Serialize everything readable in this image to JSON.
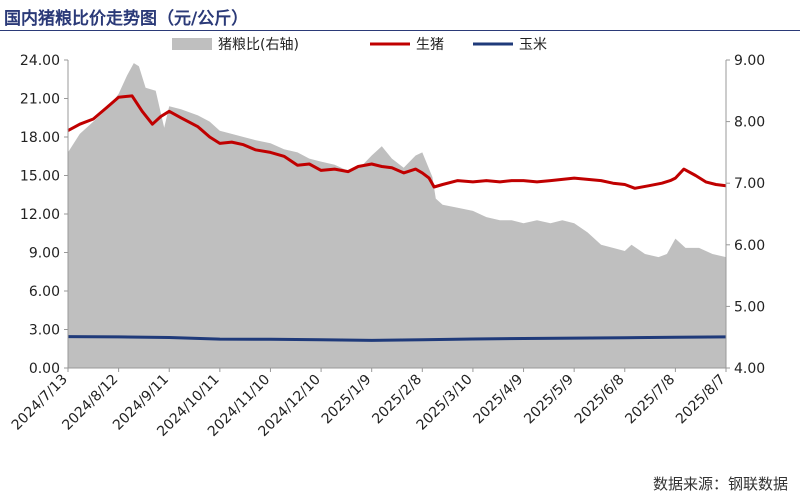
{
  "chart_data": {
    "type": "line",
    "title": "国内猪粮比价走势图（元/公斤）",
    "source": "数据来源：钢联数据",
    "left_axis": {
      "ylim": [
        0,
        24
      ],
      "ticks": [
        "0.00",
        "3.00",
        "6.00",
        "9.00",
        "12.00",
        "15.00",
        "18.00",
        "21.00",
        "24.00"
      ]
    },
    "right_axis": {
      "ylim": [
        4,
        9
      ],
      "ticks": [
        "4.00",
        "5.00",
        "6.00",
        "7.00",
        "8.00",
        "9.00"
      ]
    },
    "x_tick_labels": [
      "2024/7/13",
      "2024/8/12",
      "2024/9/11",
      "2024/10/11",
      "2024/11/10",
      "2024/12/10",
      "2025/1/9",
      "2025/2/8",
      "2025/3/10",
      "2025/4/9",
      "2025/5/9",
      "2025/6/8",
      "2025/7/8",
      "2025/8/7"
    ],
    "x_range": [
      "2024-07-13",
      "2025-08-07"
    ],
    "grid": false,
    "legend_position": "top",
    "series": [
      {
        "name": "猪粮比(右轴)",
        "type": "area",
        "axis": "right",
        "color": "#bfbfbf",
        "x": [
          "2024-07-13",
          "2024-07-20",
          "2024-07-28",
          "2024-08-05",
          "2024-08-12",
          "2024-08-17",
          "2024-08-21",
          "2024-08-24",
          "2024-08-28",
          "2024-09-03",
          "2024-09-08",
          "2024-09-11",
          "2024-09-18",
          "2024-09-28",
          "2024-10-05",
          "2024-10-11",
          "2024-10-18",
          "2024-10-25",
          "2024-11-01",
          "2024-11-10",
          "2024-11-18",
          "2024-11-26",
          "2024-12-03",
          "2024-12-10",
          "2024-12-18",
          "2024-12-26",
          "2025-01-02",
          "2025-01-09",
          "2025-01-15",
          "2025-01-21",
          "2025-01-28",
          "2025-02-04",
          "2025-02-08",
          "2025-02-14",
          "2025-02-16",
          "2025-02-20",
          "2025-03-01",
          "2025-03-10",
          "2025-03-18",
          "2025-03-26",
          "2025-04-02",
          "2025-04-09",
          "2025-04-17",
          "2025-04-25",
          "2025-05-02",
          "2025-05-09",
          "2025-05-17",
          "2025-05-25",
          "2025-06-01",
          "2025-06-08",
          "2025-06-12",
          "2025-06-20",
          "2025-06-28",
          "2025-07-03",
          "2025-07-08",
          "2025-07-14",
          "2025-07-22",
          "2025-07-30",
          "2025-08-07"
        ],
        "values": [
          7.5,
          7.8,
          8.0,
          8.2,
          8.45,
          8.75,
          8.95,
          8.9,
          8.55,
          8.5,
          7.9,
          8.25,
          8.2,
          8.1,
          8.0,
          7.85,
          7.8,
          7.75,
          7.7,
          7.65,
          7.55,
          7.5,
          7.4,
          7.35,
          7.3,
          7.2,
          7.25,
          7.45,
          7.6,
          7.4,
          7.25,
          7.45,
          7.5,
          7.1,
          6.75,
          6.65,
          6.6,
          6.55,
          6.45,
          6.4,
          6.4,
          6.35,
          6.4,
          6.35,
          6.4,
          6.35,
          6.2,
          6.0,
          5.95,
          5.9,
          6.0,
          5.85,
          5.8,
          5.85,
          6.1,
          5.95,
          5.95,
          5.85,
          5.8
        ]
      },
      {
        "name": "生猪",
        "type": "line",
        "axis": "left",
        "color": "#c00000",
        "x": [
          "2024-07-13",
          "2024-07-20",
          "2024-07-28",
          "2024-08-05",
          "2024-08-12",
          "2024-08-20",
          "2024-08-26",
          "2024-09-01",
          "2024-09-06",
          "2024-09-11",
          "2024-09-18",
          "2024-09-28",
          "2024-10-05",
          "2024-10-11",
          "2024-10-18",
          "2024-10-25",
          "2024-11-01",
          "2024-11-10",
          "2024-11-18",
          "2024-11-26",
          "2024-12-03",
          "2024-12-10",
          "2024-12-18",
          "2024-12-26",
          "2025-01-01",
          "2025-01-09",
          "2025-01-15",
          "2025-01-21",
          "2025-01-28",
          "2025-02-04",
          "2025-02-08",
          "2025-02-12",
          "2025-02-15",
          "2025-02-20",
          "2025-03-01",
          "2025-03-10",
          "2025-03-18",
          "2025-03-26",
          "2025-04-02",
          "2025-04-09",
          "2025-04-17",
          "2025-04-25",
          "2025-05-02",
          "2025-05-09",
          "2025-05-17",
          "2025-05-25",
          "2025-06-01",
          "2025-06-08",
          "2025-06-14",
          "2025-06-22",
          "2025-06-30",
          "2025-07-05",
          "2025-07-08",
          "2025-07-13",
          "2025-07-20",
          "2025-07-26",
          "2025-08-01",
          "2025-08-07"
        ],
        "values": [
          18.5,
          19.0,
          19.4,
          20.3,
          21.1,
          21.2,
          20.0,
          19.0,
          19.6,
          20.0,
          19.5,
          18.8,
          18.0,
          17.5,
          17.6,
          17.4,
          17.0,
          16.8,
          16.5,
          15.8,
          15.9,
          15.4,
          15.5,
          15.3,
          15.7,
          15.9,
          15.7,
          15.6,
          15.2,
          15.5,
          15.2,
          14.8,
          14.1,
          14.3,
          14.6,
          14.5,
          14.6,
          14.5,
          14.6,
          14.6,
          14.5,
          14.6,
          14.7,
          14.8,
          14.7,
          14.6,
          14.4,
          14.3,
          14.0,
          14.2,
          14.4,
          14.6,
          14.8,
          15.5,
          15.0,
          14.5,
          14.3,
          14.2
        ]
      },
      {
        "name": "玉米",
        "type": "line",
        "axis": "left",
        "color": "#1f3a7a",
        "x": [
          "2024-07-13",
          "2024-08-12",
          "2024-09-11",
          "2024-10-11",
          "2024-11-10",
          "2024-12-10",
          "2025-01-09",
          "2025-02-08",
          "2025-03-10",
          "2025-04-09",
          "2025-05-09",
          "2025-06-08",
          "2025-07-08",
          "2025-08-07"
        ],
        "values": [
          2.45,
          2.42,
          2.38,
          2.25,
          2.24,
          2.2,
          2.15,
          2.2,
          2.26,
          2.3,
          2.33,
          2.35,
          2.4,
          2.42
        ]
      }
    ]
  }
}
